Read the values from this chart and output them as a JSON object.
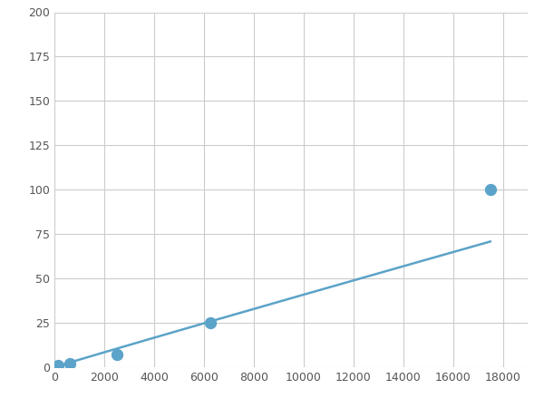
{
  "x": [
    156,
    625,
    2500,
    6250,
    17500
  ],
  "y": [
    1,
    2,
    7,
    25,
    100
  ],
  "line_color": "#5BA3C9",
  "marker_color": "#5BA3C9",
  "marker_size": 7,
  "line_width": 1.8,
  "xlim": [
    0,
    19000
  ],
  "ylim": [
    0,
    200
  ],
  "xticks": [
    0,
    2000,
    4000,
    6000,
    8000,
    10000,
    12000,
    14000,
    16000,
    18000
  ],
  "yticks": [
    0,
    25,
    50,
    75,
    100,
    125,
    150,
    175,
    200
  ],
  "grid_color": "#CCCCCC",
  "bg_color": "#FFFFFF"
}
